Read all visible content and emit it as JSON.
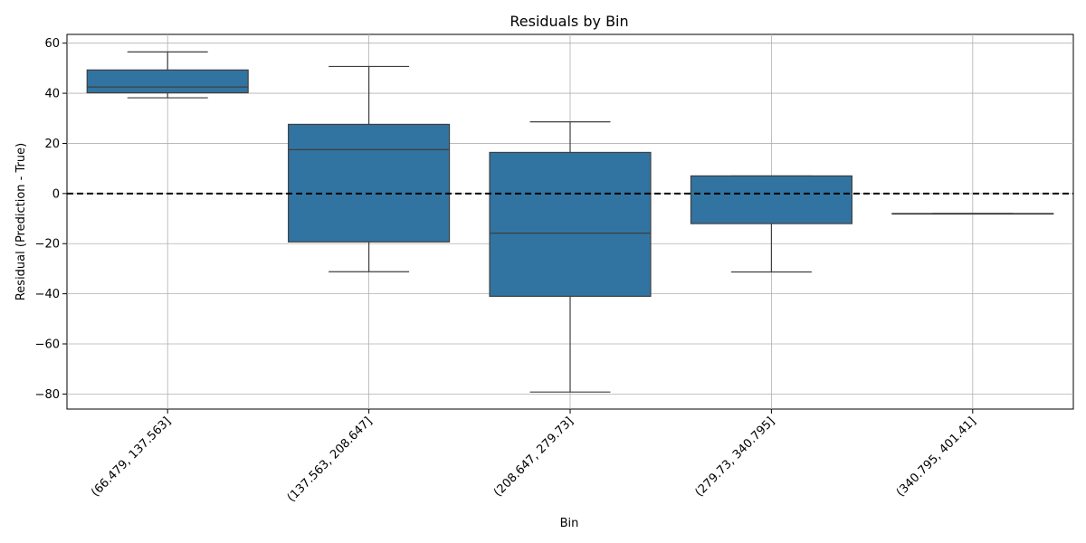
{
  "chart_data": {
    "type": "box",
    "title": "Residuals by Bin",
    "xlabel": "Bin",
    "ylabel": "Residual (Prediction - True)",
    "categories": [
      "(66.479, 137.563]",
      "(137.563, 208.647]",
      "(208.647, 279.73]",
      "(279.73, 340.795]",
      "(340.795, 401.41]"
    ],
    "boxes": [
      {
        "whisker_low": 38.2,
        "q1": 40.2,
        "median": 42.5,
        "q3": 49.3,
        "whisker_high": 56.5
      },
      {
        "whisker_low": -31.2,
        "q1": -19.3,
        "median": 17.5,
        "q3": 27.6,
        "whisker_high": 50.7
      },
      {
        "whisker_low": -79.2,
        "q1": -41.0,
        "median": -15.8,
        "q3": 16.4,
        "whisker_high": 28.6
      },
      {
        "whisker_low": -31.3,
        "q1": -12.0,
        "median": 7.0,
        "q3": 7.0,
        "whisker_high": 7.0
      },
      {
        "whisker_low": -8.0,
        "q1": -8.0,
        "median": -8.0,
        "q3": -8.0,
        "whisker_high": -8.0
      }
    ],
    "reference_line": {
      "y": 0,
      "style": "dashed",
      "color": "#000000"
    },
    "yticks": [
      -80,
      -60,
      -40,
      -20,
      0,
      20,
      40,
      60
    ],
    "ylim": [
      -86,
      63.5
    ],
    "grid": true,
    "box_color": "#3274a1",
    "line_color": "#3f3f3f"
  }
}
